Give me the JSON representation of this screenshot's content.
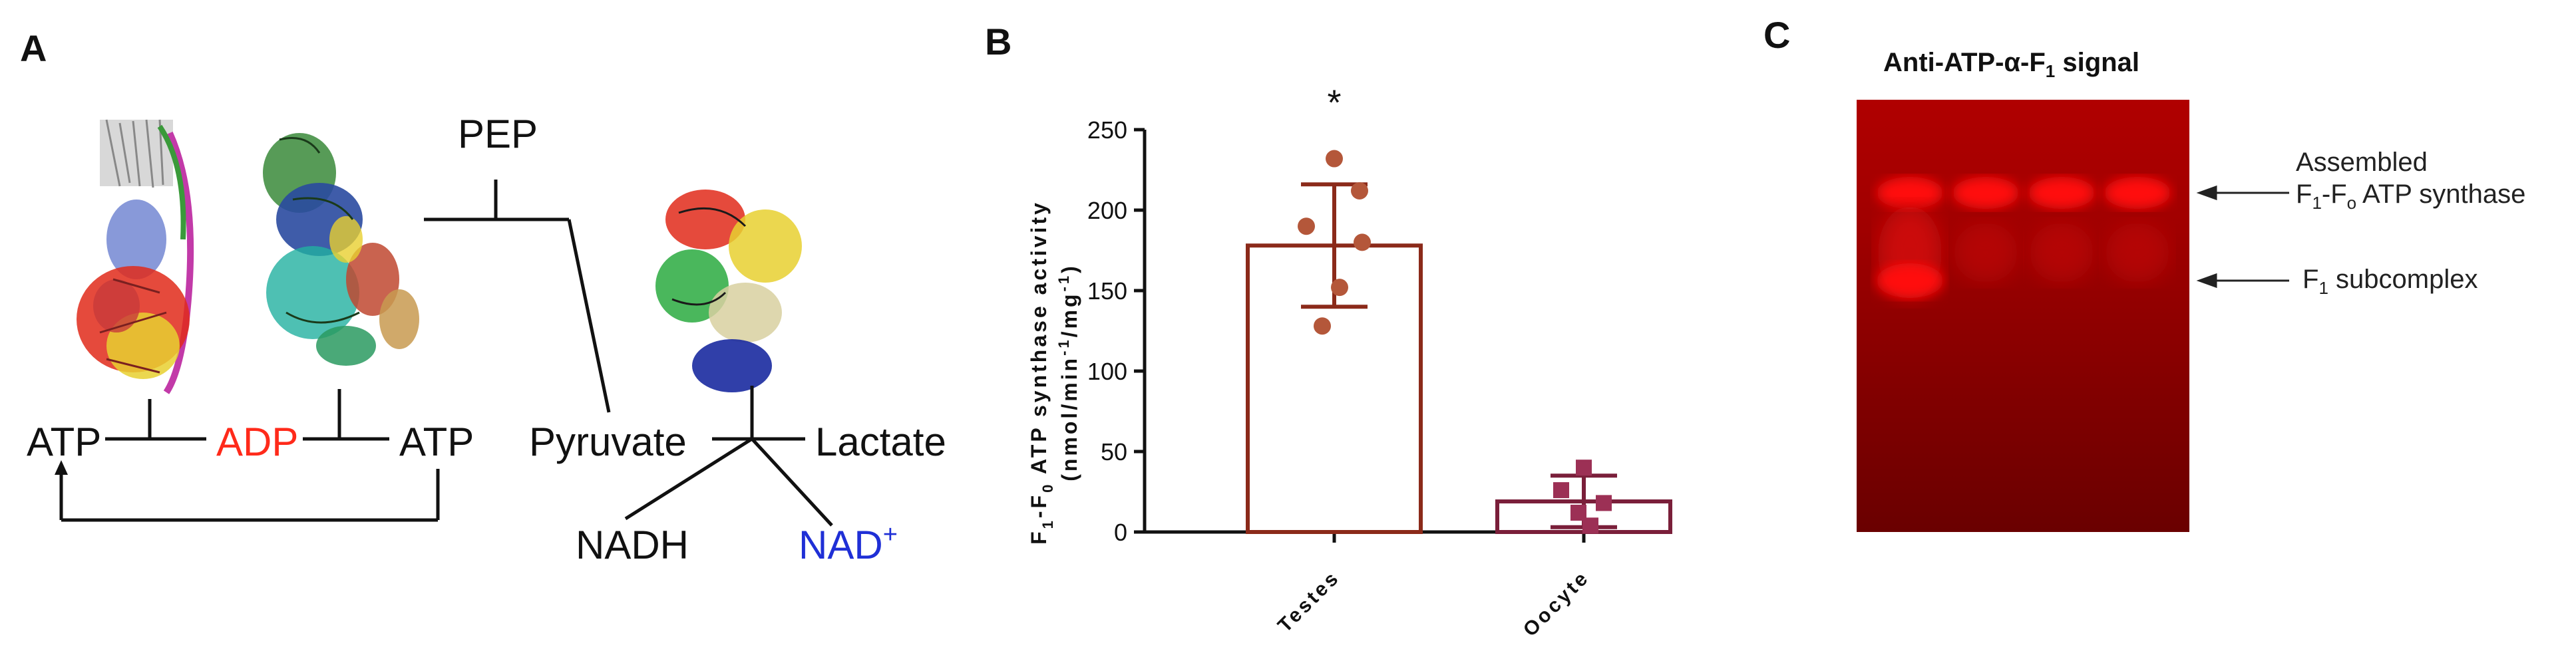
{
  "panel_a": {
    "label": "A",
    "pep": "PEP",
    "atp_left": "ATP",
    "adp": "ADP",
    "atp_right": "ATP",
    "pyruvate": "Pyruvate",
    "lactate": "Lactate",
    "nadh": "NADH",
    "nad": "NAD",
    "nad_sup": "+",
    "colors": {
      "adp": "#ff2a1a",
      "nad": "#1f2fd6",
      "text": "#111111"
    }
  },
  "panel_b": {
    "label": "B",
    "significance": "*",
    "ylabel_main": "F",
    "ylabel_sub1": "1",
    "ylabel_mid": "-F",
    "ylabel_sub2": "0",
    "ylabel_rest": " ATP synthase activity",
    "yunit_open": "(nmol/min",
    "yunit_sup1": "-1",
    "yunit_mid": "/mg",
    "yunit_sup2": "-1",
    "yunit_close": ")"
  },
  "panel_c": {
    "label": "C",
    "title_pre": "Anti-ATP-α-F",
    "title_sub": "1",
    "title_post": " signal",
    "annot1_line1": "Assembled",
    "annot1_line2_a": "F",
    "annot1_line2_sub1": "1",
    "annot1_line2_b": "-F",
    "annot1_line2_sub2": "o",
    "annot1_line2_c": " ATP synthase",
    "annot2_a": "F",
    "annot2_sub": "1",
    "annot2_b": " subcomplex",
    "lanes": 4,
    "colors": {
      "blot_bg": "#7a0000",
      "band": "#ff1010"
    }
  },
  "chart_data": {
    "type": "bar",
    "categories": [
      "Testes",
      "Oocyte"
    ],
    "values": [
      178,
      19
    ],
    "error": [
      38,
      16
    ],
    "points": [
      [
        232,
        212,
        190,
        180,
        152,
        128
      ],
      [
        40,
        26,
        18,
        12,
        4
      ]
    ],
    "ylim": [
      0,
      250
    ],
    "yticks": [
      0,
      50,
      100,
      150,
      200,
      250
    ],
    "colors": {
      "testes": "#8b2a1a",
      "testes_dots": "#b4573a",
      "oocyte": "#7a1f3a",
      "oocyte_dots": "#9c3055"
    }
  }
}
